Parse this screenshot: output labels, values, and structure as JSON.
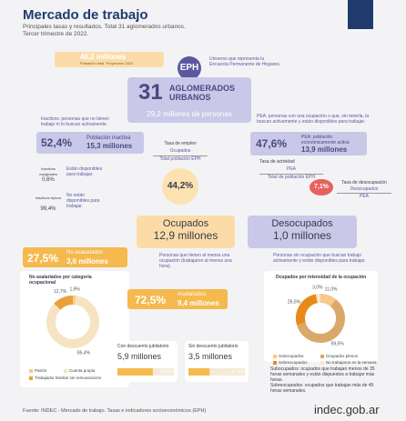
{
  "header": {
    "title": "Mercado de trabajo",
    "subtitle": "Principales tasas y resultados. Total 31 aglomerados urbanos.",
    "period": "Tercer trimestre de 2022."
  },
  "population": {
    "value": "46,2 millones",
    "note": "Población total. Proyección 2022"
  },
  "eph": {
    "badge": "EPH",
    "note": "Universo que representa la Encuesta Permanente de Hogares."
  },
  "aglomerados": {
    "number": "31",
    "label": "AGLOMERADOS URBANOS",
    "people": "29,2 millones de personas"
  },
  "inactivos": {
    "definition": "Inactivos: personas que no tienen trabajo ni lo buscan activamente.",
    "rate": "52,4%",
    "label": "Población inactiva",
    "count": "15,3 millones",
    "marginales": {
      "label": "Inactivos marginales",
      "rate": "0,6%",
      "note": "Están disponibles para trabajar."
    },
    "tipicos": {
      "label": "Inactivos típicos",
      "rate": "99,4%",
      "note": "No están disponibles para trabajar."
    }
  },
  "pea": {
    "definition": "PEA: personas con una ocupación o que, sin tenerla, la buscan activamente y están disponibles para trabajar.",
    "rate": "47,6%",
    "label": "PEA: población económicamente activa",
    "count": "13,9 millones"
  },
  "tasa_empleo": {
    "title": "Tasa de empleo",
    "numerator": "Ocupados",
    "denominator": "Total población EPH",
    "rate": "44,2%"
  },
  "tasa_actividad": {
    "title": "Tasa de actividad",
    "numerator": "PEA",
    "denominator": "Total de población EPH"
  },
  "tasa_desocupacion": {
    "rate": "7,1%",
    "title": "Tasa de desocupación",
    "numerator": "Desocupados",
    "denominator": "PEA"
  },
  "ocupados": {
    "title": "Ocupados",
    "count": "12,9 millones",
    "note": "Personas que tienen al menos una ocupación (trabajaron al menos una hora)."
  },
  "desocupados": {
    "title": "Desocupados",
    "count": "1,0 millones",
    "note": "Personas sin ocupación que buscan trabajo activamente y están disponibles para trabajar."
  },
  "no_asalariados": {
    "rate": "27,5%",
    "label": "No asalariados",
    "count": "3,6 millones",
    "chart": {
      "title": "No asalariados por categoría ocupacional",
      "slices": [
        {
          "name": "Patrón",
          "value": 1.9,
          "label": "1,9%",
          "color": "#f7c98a"
        },
        {
          "name": "Cuenta propia",
          "value": 85.4,
          "label": "85,4%",
          "color": "#f5e3c2"
        },
        {
          "name": "Trabajador familiar sin remuneración",
          "value": 12.7,
          "label": "12,7%",
          "color": "#e9a23b"
        }
      ]
    }
  },
  "asalariados": {
    "rate": "72,5%",
    "label": "Asalariados",
    "count": "9,4 millones",
    "con": {
      "label": "Con descuento jubilatorio",
      "count": "5,9 millones",
      "share": {
        "value": 62.6,
        "label": "62,6%"
      }
    },
    "sin": {
      "label": "Sin descuento jubilatorio",
      "count": "3,5 millones",
      "share": {
        "value": 37.4,
        "label": "37,4%"
      }
    }
  },
  "intensidad": {
    "title": "Ocupados por intensidad de la ocupación",
    "slices": [
      {
        "name": "Subocupados",
        "value": 11.0,
        "label": "11,0%",
        "color": "#f7c98a"
      },
      {
        "name": "Ocupados plenos",
        "value": 59.5,
        "label": "59,5%",
        "color": "#d9a96a"
      },
      {
        "name": "Sobreocupados",
        "value": 26.5,
        "label": "26,5%",
        "color": "#e88a1a"
      },
      {
        "name": "No trabajaron en la semana",
        "value": 3.0,
        "label": "3,0%",
        "color": "#fbe6c6"
      }
    ],
    "notes": [
      "Subocupados: ocupados que trabajan menos de 35 horas semanales y están dispuestos a trabajar más horas.",
      "Sobreocupados: ocupados que trabajan más de 45 horas semanales."
    ]
  },
  "footer": {
    "source": "Fuente: INDEC - Mercado de trabajo. Tasas e indicadores socioeconómicos (EPH)",
    "site": "indec.gob.ar"
  }
}
